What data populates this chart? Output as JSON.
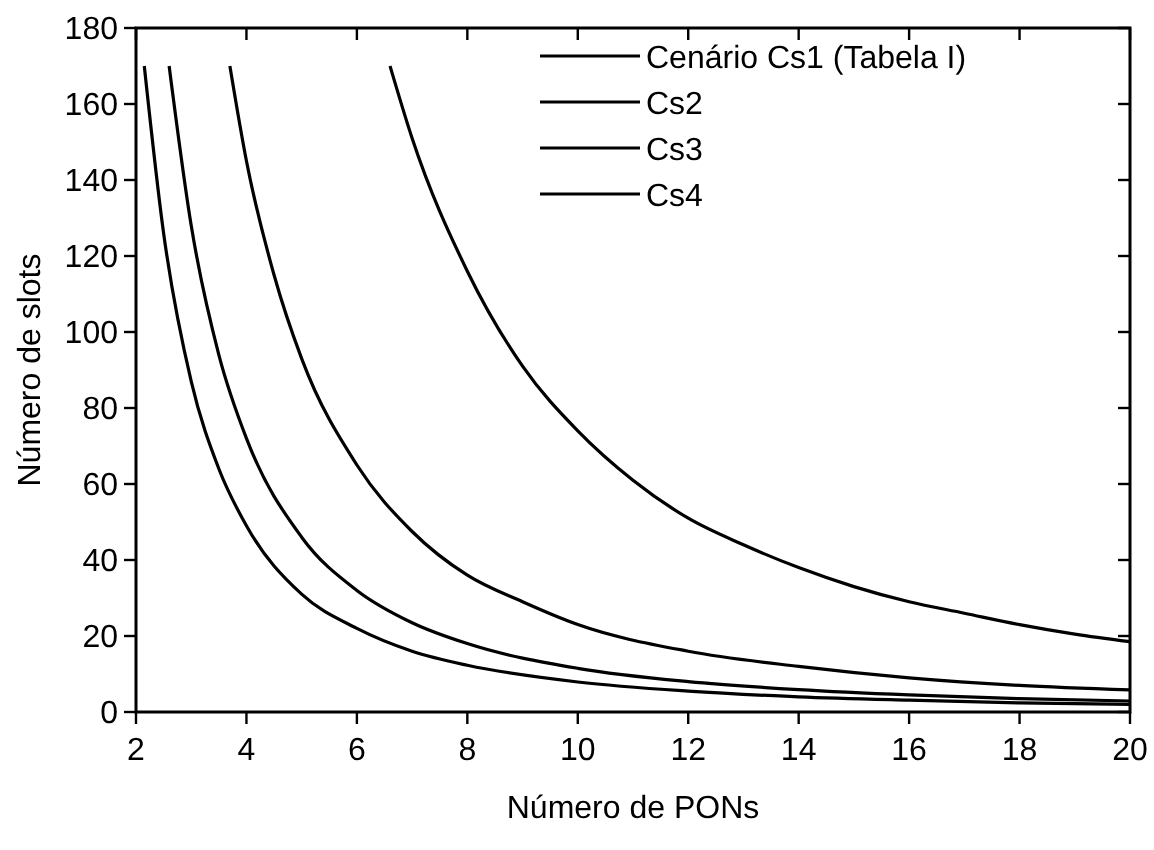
{
  "chart_data": {
    "type": "line",
    "xlabel": "Número de PONs",
    "ylabel": "Número de slots",
    "xlim": [
      2,
      20
    ],
    "ylim": [
      0,
      180
    ],
    "xticks": [
      2,
      4,
      6,
      8,
      10,
      12,
      14,
      16,
      18,
      20
    ],
    "yticks": [
      0,
      20,
      40,
      60,
      80,
      100,
      120,
      140,
      160,
      180
    ],
    "grid": false,
    "legend": "top right",
    "line_style": "solid",
    "series": [
      {
        "name": "Cenário Cs1 (Tabela I)",
        "color": "#000000",
        "x": [
          6.6,
          7,
          8,
          9,
          10,
          11,
          12,
          13,
          14,
          15,
          16,
          17,
          18,
          19,
          20
        ],
        "values": [
          170,
          151,
          116,
          91,
          74,
          61,
          51,
          44,
          38,
          33,
          29,
          26,
          23,
          20.5,
          18.5
        ]
      },
      {
        "name": "Cs2",
        "color": "#000000",
        "x": [
          3.7,
          4,
          4.5,
          5,
          6,
          7,
          8,
          9,
          10,
          12,
          14,
          16,
          18,
          20
        ],
        "values": [
          170,
          145,
          115,
          93,
          65,
          47.5,
          36,
          29,
          23,
          16,
          12,
          9,
          7,
          5.8
        ]
      },
      {
        "name": "Cs3",
        "color": "#000000",
        "x": [
          2.6,
          3,
          3.5,
          4,
          5,
          6,
          7,
          8,
          10,
          12,
          14,
          16,
          18,
          20
        ],
        "values": [
          170,
          128,
          94,
          72,
          46,
          32,
          23.5,
          18,
          11.5,
          8,
          5.9,
          4.5,
          3.5,
          2.9
        ]
      },
      {
        "name": "Cs4",
        "color": "#000000",
        "x": [
          2.15,
          2.5,
          3,
          3.5,
          4,
          5,
          6,
          7,
          8,
          10,
          12,
          14,
          16,
          18,
          20
        ],
        "values": [
          170,
          126,
          87,
          64,
          49,
          31,
          22,
          16,
          12.3,
          7.9,
          5.5,
          4,
          3.1,
          2.4,
          2
        ]
      }
    ]
  }
}
